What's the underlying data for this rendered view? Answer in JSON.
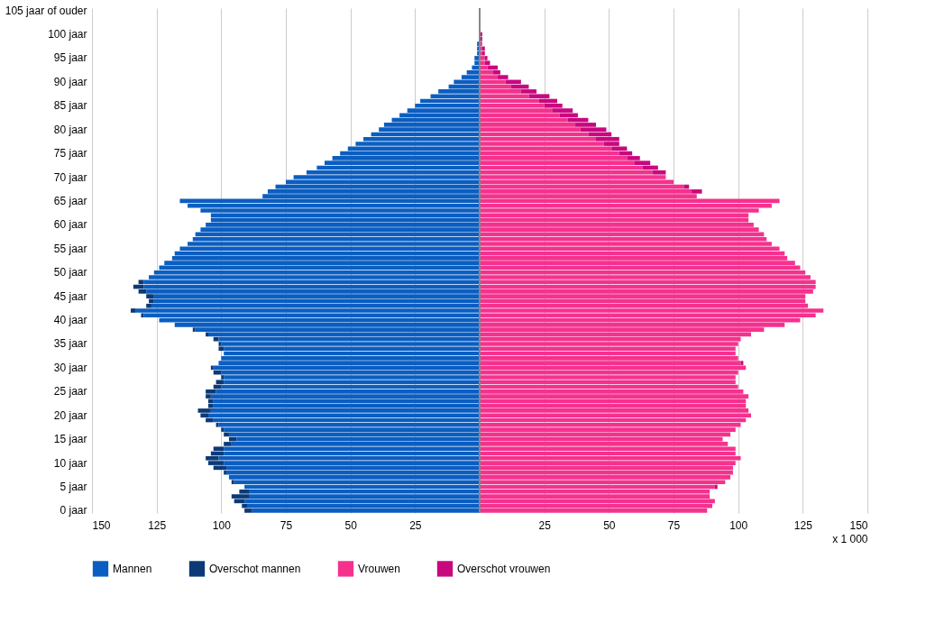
{
  "chart_data": {
    "type": "bar",
    "orientation": "horizontal",
    "stacked": true,
    "categories": [
      "105 jaar of ouder",
      null,
      null,
      null,
      null,
      "100 jaar",
      null,
      null,
      null,
      null,
      "95 jaar",
      null,
      null,
      null,
      null,
      "90 jaar",
      null,
      null,
      null,
      null,
      "85 jaar",
      null,
      null,
      null,
      null,
      "80 jaar",
      null,
      null,
      null,
      null,
      "75 jaar",
      null,
      null,
      null,
      null,
      "70 jaar",
      null,
      null,
      null,
      null,
      "65 jaar",
      null,
      null,
      null,
      null,
      "60 jaar",
      null,
      null,
      null,
      null,
      "55 jaar",
      null,
      null,
      null,
      null,
      "50 jaar",
      null,
      null,
      null,
      null,
      "45 jaar",
      null,
      null,
      null,
      null,
      "40 jaar",
      null,
      null,
      null,
      null,
      "35 jaar",
      null,
      null,
      null,
      null,
      "30 jaar",
      null,
      null,
      null,
      null,
      "25 jaar",
      null,
      null,
      null,
      null,
      "20 jaar",
      null,
      null,
      null,
      null,
      "15 jaar",
      null,
      null,
      null,
      null,
      "10 jaar",
      null,
      null,
      null,
      null,
      "5 jaar",
      null,
      null,
      null,
      null,
      "0 jaar"
    ],
    "series": [
      {
        "name": "Mannen",
        "color": "#0b5ec1",
        "values": [
          0,
          0,
          0,
          0,
          0,
          0,
          0,
          -1,
          -1,
          -1,
          -2,
          -2,
          -3,
          -5,
          -7,
          -10,
          -12,
          -16,
          -19,
          -23,
          -25,
          -28,
          -31,
          -34,
          -37,
          -39,
          -42,
          -45,
          -48,
          -51,
          -54,
          -57,
          -60,
          -63,
          -67,
          -72,
          -75,
          -79,
          -82,
          -84,
          -116,
          -113,
          -108,
          -104,
          -104,
          -106,
          -108,
          -110,
          -111,
          -113,
          -116,
          -118,
          -119,
          -122,
          -124,
          -126,
          -128,
          -130,
          -130,
          -129,
          -126,
          -126,
          -127,
          -133,
          -130,
          -124,
          -118,
          -110,
          -105,
          -101,
          -100,
          -99,
          -99,
          -100,
          -101,
          -103,
          -100,
          -99,
          -99,
          -100,
          -102,
          -104,
          -103,
          -103,
          -104,
          -105,
          -103,
          -101,
          -99,
          -97,
          -94,
          -96,
          -99,
          -99,
          -101,
          -99,
          -98,
          -98,
          -97,
          -95,
          -91,
          -89,
          -89,
          -91,
          -90,
          -88
        ]
      },
      {
        "name": "Overschot mannen",
        "color": "#0c3a78",
        "values": [
          0,
          0,
          0,
          0,
          0,
          0,
          0,
          0,
          0,
          0,
          0,
          0,
          0,
          0,
          0,
          0,
          0,
          0,
          0,
          0,
          0,
          0,
          0,
          0,
          0,
          0,
          0,
          0,
          0,
          0,
          0,
          0,
          0,
          0,
          0,
          0,
          0,
          0,
          0,
          0,
          0,
          0,
          0,
          0,
          0,
          0,
          0,
          0,
          0,
          0,
          0,
          0,
          0,
          0,
          0,
          0,
          0,
          -2,
          -4,
          -3,
          -3,
          -2,
          -2,
          -2,
          -1,
          0,
          0,
          -1,
          -1,
          -2,
          -1,
          -2,
          0,
          0,
          0,
          -1,
          -3,
          -1,
          -3,
          -3,
          -4,
          -2,
          -2,
          -2,
          -5,
          -3,
          -3,
          -1,
          -1,
          -2,
          -3,
          -3,
          -4,
          -5,
          -5,
          -6,
          -5,
          -1,
          0,
          -1,
          0,
          -4,
          -7,
          -4,
          -2,
          -3
        ]
      },
      {
        "name": "Vrouwen",
        "color": "#f5318e",
        "values": [
          0,
          0,
          0,
          0,
          0,
          0,
          0,
          1,
          1,
          1,
          2,
          2,
          3,
          5,
          7,
          10,
          12,
          16,
          19,
          23,
          25,
          28,
          31,
          34,
          37,
          39,
          42,
          45,
          48,
          51,
          54,
          57,
          60,
          63,
          67,
          72,
          75,
          79,
          82,
          84,
          116,
          113,
          108,
          104,
          104,
          106,
          108,
          110,
          111,
          113,
          116,
          118,
          119,
          122,
          124,
          126,
          128,
          130,
          130,
          129,
          126,
          126,
          127,
          133,
          130,
          124,
          118,
          110,
          105,
          101,
          100,
          99,
          99,
          100,
          101,
          103,
          100,
          99,
          99,
          100,
          102,
          104,
          103,
          103,
          104,
          105,
          103,
          101,
          99,
          97,
          94,
          96,
          99,
          99,
          101,
          99,
          98,
          98,
          97,
          95,
          91,
          89,
          89,
          91,
          90,
          88
        ]
      },
      {
        "name": "Overschot vrouwen",
        "color": "#c9077f",
        "values": [
          0,
          0,
          0,
          0,
          0,
          1,
          1,
          0,
          1,
          1,
          1,
          2,
          4,
          3,
          4,
          6,
          7,
          6,
          8,
          7,
          7,
          8,
          7,
          8,
          8,
          10,
          9,
          9,
          6,
          6,
          5,
          5,
          6,
          6,
          5,
          0,
          0,
          2,
          4,
          0,
          0,
          0,
          0,
          0,
          0,
          0,
          0,
          0,
          0,
          0,
          0,
          0,
          0,
          0,
          0,
          0,
          0,
          0,
          0,
          0,
          0,
          0,
          0,
          0,
          0,
          0,
          0,
          0,
          0,
          0,
          0,
          0,
          0,
          0,
          1,
          0,
          0,
          0,
          0,
          0,
          0,
          0,
          0,
          0,
          0,
          0,
          0,
          0,
          0,
          0,
          0,
          0,
          0,
          0,
          0,
          0,
          0,
          0,
          0,
          0,
          1,
          0,
          0,
          0,
          0,
          0
        ]
      }
    ],
    "xlim": [
      -150,
      150
    ],
    "xticks": [
      {
        "value": -150,
        "label": "150"
      },
      {
        "value": -125,
        "label": "125"
      },
      {
        "value": -100,
        "label": "100"
      },
      {
        "value": -75,
        "label": "75"
      },
      {
        "value": -50,
        "label": "50"
      },
      {
        "value": -25,
        "label": "25"
      },
      25,
      50,
      75,
      100,
      125,
      150
    ],
    "xlabel": "x 1 000",
    "ref_lines": [
      {
        "axis": "x",
        "value": 0,
        "color": "#888888"
      }
    ],
    "grid": "x",
    "legend": "bottom"
  }
}
